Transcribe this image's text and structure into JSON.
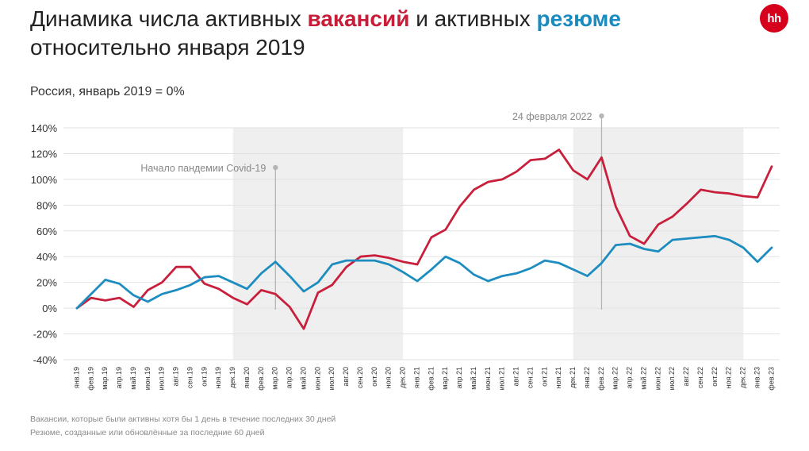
{
  "header": {
    "title_part1": "Динамика числа активных ",
    "title_vacancies": "вакансий",
    "title_part2": " и активных ",
    "title_resumes": "резюме",
    "title_line2": "относительно января 2019",
    "subtitle": "Россия, январь 2019 = 0%",
    "logo_text": "hh"
  },
  "footnotes": {
    "vacancies": "Вакансии, которые были активны хотя бы 1 день в течение последних 30 дней",
    "resumes": "Резюме, созданные или обновлённые за последние 60 дней"
  },
  "colors": {
    "vacancies": "#c8203c",
    "resumes": "#1d8dbf",
    "shade": "#efefef",
    "marker": "#b5b5b5"
  },
  "chart_data": {
    "type": "line",
    "x": [
      "янв.19",
      "фев.19",
      "мар.19",
      "апр.19",
      "май.19",
      "июн.19",
      "июл.19",
      "авг.19",
      "сен.19",
      "окт.19",
      "ноя.19",
      "дек.19",
      "янв.20",
      "фев.20",
      "мар.20",
      "апр.20",
      "май.20",
      "июн.20",
      "июл.20",
      "авг.20",
      "сен.20",
      "окт.20",
      "ноя.20",
      "дек.20",
      "янв.21",
      "фев.21",
      "мар.21",
      "апр.21",
      "май.21",
      "июн.21",
      "июл.21",
      "авг.21",
      "сен.21",
      "окт.21",
      "ноя.21",
      "дек.21",
      "янв.22",
      "фев.22",
      "мар.22",
      "апр.22",
      "май.22",
      "июн.22",
      "июл.22",
      "авг.22",
      "сен.22",
      "окт.22",
      "ноя.22",
      "дек.22",
      "янв.23",
      "фев.23"
    ],
    "x_tick_labels": [
      "янв.19",
      "фев.19",
      "мар.19",
      "апр.19",
      "май.19",
      "июн.19",
      "июл.19",
      "авг.19",
      "сен.19",
      "окт.19",
      "ноя.19",
      "дек.19",
      "янв.20",
      "фев.20",
      "мар.20",
      "апр.20",
      "май.20",
      "июн.20",
      "июл.20",
      "авг.20",
      "сен.20",
      "окт.20",
      "ноя.20",
      "дек.20",
      "янв.21",
      "фев.21",
      "мар.21",
      "апр.21",
      "май.21",
      "июн.21",
      "июл.21",
      "авг.21",
      "сен.21",
      "окт.21",
      "ноя.21",
      "дек.21",
      "янв.22",
      "фев.22",
      "мар.22",
      "апр.22",
      "май.22",
      "июн.22",
      "июл.22",
      "авг.22",
      "сен.22",
      "окт.22",
      "ноя.22",
      "дек.22",
      "янв.23",
      "фев.23"
    ],
    "series": [
      {
        "name": "вакансий",
        "values": [
          0,
          8,
          6,
          8,
          1,
          14,
          20,
          32,
          32,
          19,
          15,
          8,
          3,
          14,
          11,
          1,
          -16,
          12,
          18,
          32,
          40,
          41,
          39,
          36,
          34,
          55,
          61,
          79,
          92,
          98,
          100,
          106,
          115,
          116,
          123,
          107,
          100,
          117,
          79,
          56,
          50,
          65,
          71,
          81,
          92,
          90,
          89,
          87,
          86,
          110
        ]
      },
      {
        "name": "резюме",
        "values": [
          0,
          11,
          22,
          19,
          10,
          5,
          11,
          14,
          18,
          24,
          25,
          20,
          15,
          27,
          36,
          25,
          13,
          20,
          34,
          37,
          37,
          37,
          34,
          28,
          21,
          30,
          40,
          35,
          26,
          21,
          25,
          27,
          31,
          37,
          35,
          30,
          25,
          35,
          49,
          50,
          46,
          44,
          53,
          54,
          55,
          56,
          53,
          47,
          36,
          47
        ]
      }
    ],
    "yaxis": {
      "ticks": [
        140,
        120,
        100,
        80,
        60,
        40,
        20,
        0,
        -20,
        -40
      ],
      "tick_labels": [
        "140%",
        "120%",
        "100%",
        "80%",
        "60%",
        "40%",
        "20%",
        "0%",
        "-20%",
        "-40%"
      ],
      "range": [
        -40,
        140
      ]
    },
    "shaded_periods": [
      {
        "from": "дек.19",
        "to": "дек.20"
      },
      {
        "from": "дек.21",
        "to": "дек.22"
      }
    ],
    "annotations": [
      {
        "label": "Начало пандемии Covid-19",
        "at": "мар.20"
      },
      {
        "label": "24 февраля 2022",
        "at": "фев.22"
      }
    ],
    "gridlines": true,
    "legend": "colored words in title"
  }
}
